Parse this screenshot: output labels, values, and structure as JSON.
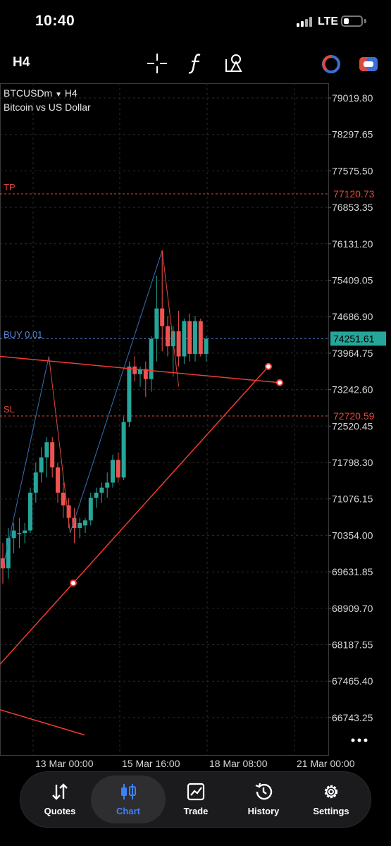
{
  "status_bar": {
    "time": "10:40",
    "network": "LTE"
  },
  "toolbar": {
    "timeframe": "H4",
    "icons": [
      "crosshair-icon",
      "function-icon",
      "objects-icon",
      "account-switch-icon",
      "trading-toggle-icon"
    ]
  },
  "chart": {
    "symbol": "BTCUSDm",
    "timeframe": "H4",
    "description": "Bitcoin vs US Dollar",
    "price_axis": [
      "79019.80",
      "78297.65",
      "77575.50",
      "76853.35",
      "76131.20",
      "75409.05",
      "74686.90",
      "73964.75",
      "73242.60",
      "72520.45",
      "71798.30",
      "71076.15",
      "70354.00",
      "69631.85",
      "68909.70",
      "68187.55",
      "67465.40",
      "66743.25"
    ],
    "time_axis": [
      "13 Mar 00:00",
      "15 Mar 16:00",
      "18 Mar 08:00",
      "21 Mar 00:00"
    ],
    "levels": {
      "tp": {
        "label": "TP",
        "price": "77120.73",
        "color": "#e0493a"
      },
      "buy": {
        "label": "BUY 0.01",
        "price": "74251.61",
        "color": "#4a78c8"
      },
      "sl": {
        "label": "SL",
        "price": "72720.59",
        "color": "#e0493a"
      }
    },
    "colors": {
      "bull": "#26a69a",
      "bear": "#ef5350",
      "trendline": "#f23a33",
      "zigzag_up": "#3b6fb6",
      "zigzag_down": "#e0493a"
    }
  },
  "chart_data": {
    "type": "candlestick",
    "title": "BTCUSDm, H4",
    "subtitle": "Bitcoin vs US Dollar",
    "ylim": [
      66500,
      79300
    ],
    "x_ticks": [
      "13 Mar 00:00",
      "15 Mar 16:00",
      "18 Mar 08:00",
      "21 Mar 00:00"
    ],
    "candles": [
      {
        "o": 69900,
        "h": 70200,
        "l": 69400,
        "c": 69700
      },
      {
        "o": 69700,
        "h": 70500,
        "l": 69500,
        "c": 70300
      },
      {
        "o": 70300,
        "h": 70600,
        "l": 70000,
        "c": 70450
      },
      {
        "o": 70400,
        "h": 70700,
        "l": 70100,
        "c": 70400
      },
      {
        "o": 70400,
        "h": 70600,
        "l": 70200,
        "c": 70450
      },
      {
        "o": 70450,
        "h": 71300,
        "l": 70400,
        "c": 71200
      },
      {
        "o": 71200,
        "h": 71800,
        "l": 71000,
        "c": 71600
      },
      {
        "o": 71600,
        "h": 72100,
        "l": 71400,
        "c": 71900
      },
      {
        "o": 71900,
        "h": 72300,
        "l": 71500,
        "c": 72200
      },
      {
        "o": 72200,
        "h": 72300,
        "l": 71500,
        "c": 71700
      },
      {
        "o": 71700,
        "h": 71800,
        "l": 71000,
        "c": 71200
      },
      {
        "o": 71200,
        "h": 71400,
        "l": 70700,
        "c": 70950
      },
      {
        "o": 70950,
        "h": 71100,
        "l": 70500,
        "c": 70700
      },
      {
        "o": 70700,
        "h": 70900,
        "l": 70200,
        "c": 70500
      },
      {
        "o": 70500,
        "h": 70700,
        "l": 70300,
        "c": 70600
      },
      {
        "o": 70550,
        "h": 70700,
        "l": 70400,
        "c": 70650
      },
      {
        "o": 70650,
        "h": 71200,
        "l": 70550,
        "c": 71100
      },
      {
        "o": 71100,
        "h": 71300,
        "l": 70900,
        "c": 71200
      },
      {
        "o": 71200,
        "h": 71400,
        "l": 71000,
        "c": 71300
      },
      {
        "o": 71300,
        "h": 71600,
        "l": 71100,
        "c": 71400
      },
      {
        "o": 71400,
        "h": 71950,
        "l": 71300,
        "c": 71850
      },
      {
        "o": 71850,
        "h": 72000,
        "l": 71400,
        "c": 71500
      },
      {
        "o": 71500,
        "h": 72700,
        "l": 71450,
        "c": 72600
      },
      {
        "o": 72600,
        "h": 73800,
        "l": 72500,
        "c": 73700
      },
      {
        "o": 73700,
        "h": 73900,
        "l": 73400,
        "c": 73550
      },
      {
        "o": 73550,
        "h": 73700,
        "l": 73300,
        "c": 73650
      },
      {
        "o": 73650,
        "h": 73800,
        "l": 73100,
        "c": 73450
      },
      {
        "o": 73450,
        "h": 74300,
        "l": 73200,
        "c": 74250
      },
      {
        "o": 74250,
        "h": 75500,
        "l": 73800,
        "c": 74850
      },
      {
        "o": 74850,
        "h": 76000,
        "l": 74000,
        "c": 74500
      },
      {
        "o": 74500,
        "h": 74700,
        "l": 73900,
        "c": 74100
      },
      {
        "o": 74100,
        "h": 74500,
        "l": 73500,
        "c": 74400
      },
      {
        "o": 74400,
        "h": 74800,
        "l": 73700,
        "c": 73900
      },
      {
        "o": 73900,
        "h": 74650,
        "l": 73750,
        "c": 74600
      },
      {
        "o": 74600,
        "h": 74750,
        "l": 73800,
        "c": 73950
      },
      {
        "o": 73950,
        "h": 74700,
        "l": 73800,
        "c": 74600
      },
      {
        "o": 74600,
        "h": 74650,
        "l": 73900,
        "c": 73950
      },
      {
        "o": 73950,
        "h": 74300,
        "l": 73800,
        "c": 74250
      }
    ],
    "trendlines": [
      {
        "from_price": 73900,
        "to_price": 73380
      },
      {
        "from_price": 67800,
        "to_price": 73700
      },
      {
        "from_price": 66900,
        "to_price": 66400
      }
    ]
  },
  "nav": {
    "items": [
      {
        "label": "Quotes",
        "icon": "quotes-icon"
      },
      {
        "label": "Chart",
        "icon": "chart-icon",
        "active": true,
        "color": "#3b82f6"
      },
      {
        "label": "Trade",
        "icon": "trade-icon"
      },
      {
        "label": "History",
        "icon": "history-icon"
      },
      {
        "label": "Settings",
        "icon": "settings-icon"
      }
    ]
  }
}
